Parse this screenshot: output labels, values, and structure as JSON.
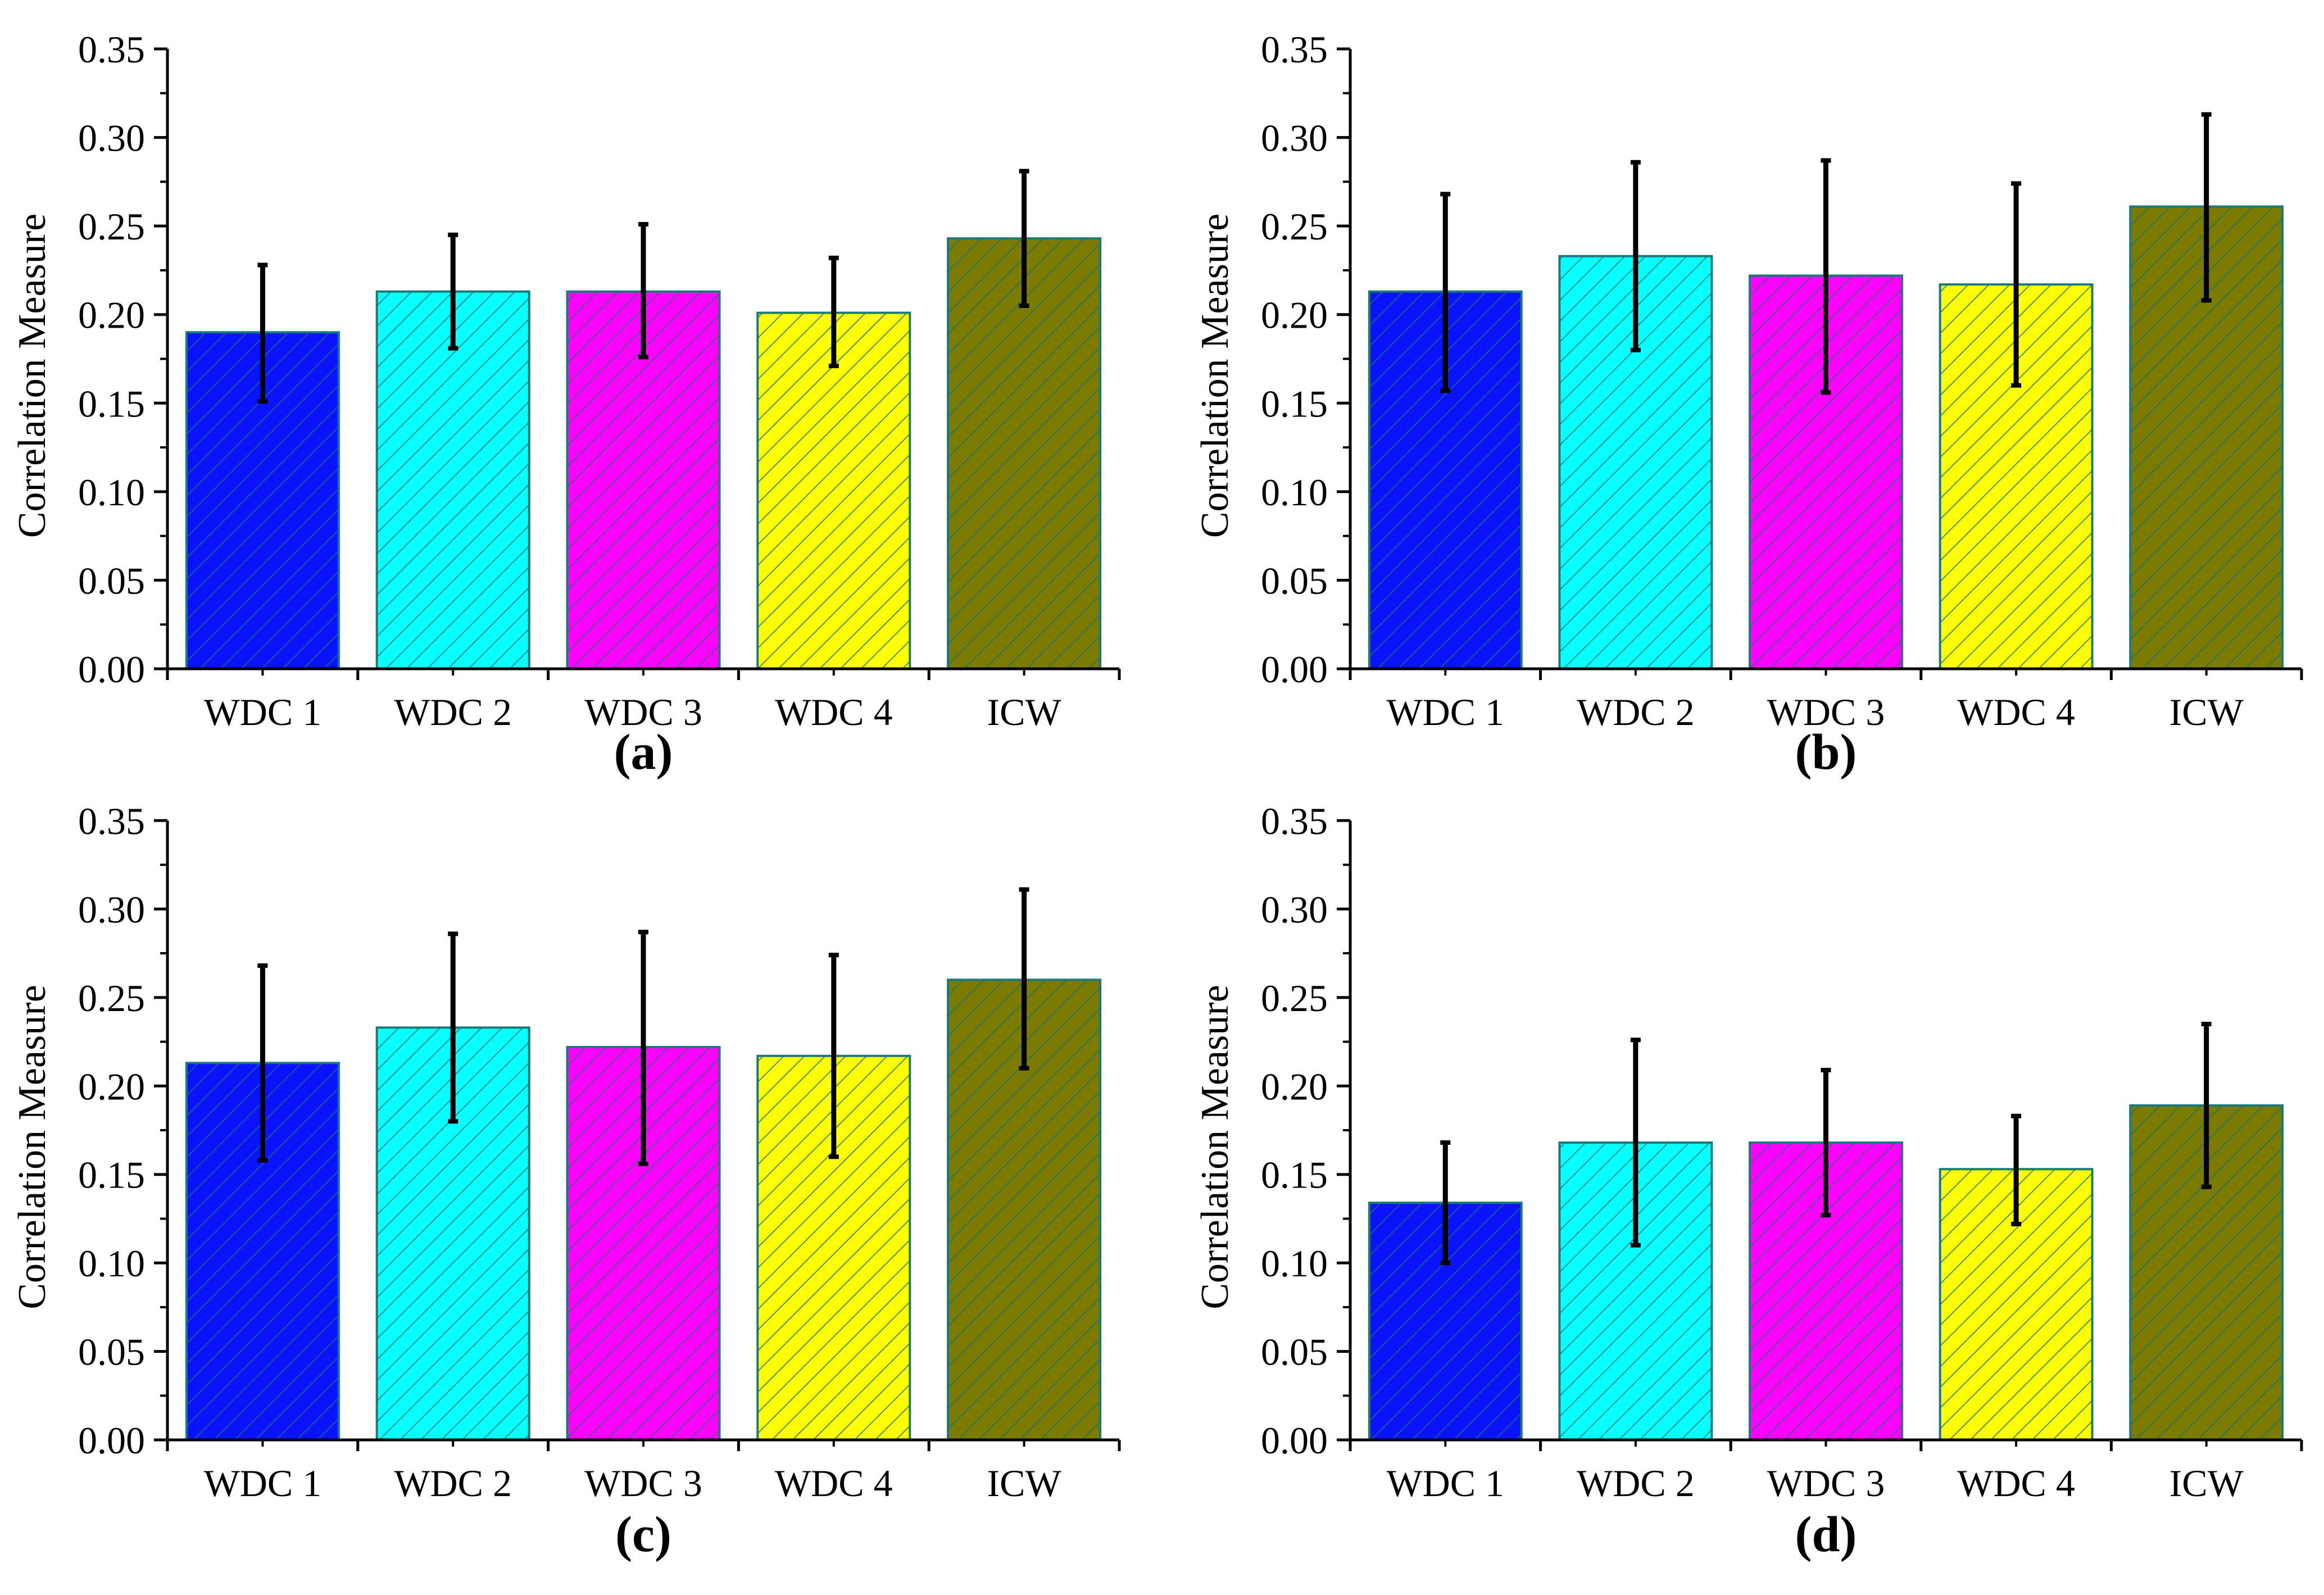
{
  "figure": {
    "colors": {
      "WDC 1": "#0a12ff",
      "WDC 2": "#08ffff",
      "WDC 3": "#ff03ff",
      "WDC 4": "#ffff06",
      "ICW": "#7b7b00",
      "bar_edge": "#1a7a7a",
      "error_bar": "#000000",
      "hatch": "#1a6f6f"
    }
  },
  "chart_data": [
    {
      "type": "bar",
      "panel_label": "(a)",
      "categories": [
        "WDC 1",
        "WDC 2",
        "WDC 3",
        "WDC 4",
        "ICW"
      ],
      "values": [
        0.19,
        0.213,
        0.213,
        0.201,
        0.243
      ],
      "error_low": [
        0.151,
        0.181,
        0.176,
        0.171,
        0.205
      ],
      "error_high": [
        0.228,
        0.245,
        0.251,
        0.232,
        0.281
      ],
      "ylabel": "Correlation Measure",
      "xlabel": "",
      "ylim": [
        0,
        0.35
      ],
      "yticks": [
        "0.00",
        "0.05",
        "0.10",
        "0.15",
        "0.20",
        "0.25",
        "0.30",
        "0.35"
      ],
      "grid": false
    },
    {
      "type": "bar",
      "panel_label": "(b)",
      "categories": [
        "WDC 1",
        "WDC 2",
        "WDC 3",
        "WDC 4",
        "ICW"
      ],
      "values": [
        0.213,
        0.233,
        0.222,
        0.217,
        0.261
      ],
      "error_low": [
        0.157,
        0.18,
        0.156,
        0.16,
        0.208
      ],
      "error_high": [
        0.268,
        0.286,
        0.287,
        0.274,
        0.313
      ],
      "ylabel": "Correlation Measure",
      "xlabel": "",
      "ylim": [
        0,
        0.35
      ],
      "yticks": [
        "0.00",
        "0.05",
        "0.10",
        "0.15",
        "0.20",
        "0.25",
        "0.30",
        "0.35"
      ],
      "grid": false
    },
    {
      "type": "bar",
      "panel_label": "(c)",
      "categories": [
        "WDC 1",
        "WDC 2",
        "WDC 3",
        "WDC 4",
        "ICW"
      ],
      "values": [
        0.213,
        0.233,
        0.222,
        0.217,
        0.26
      ],
      "error_low": [
        0.158,
        0.18,
        0.156,
        0.16,
        0.21
      ],
      "error_high": [
        0.268,
        0.286,
        0.287,
        0.274,
        0.311
      ],
      "ylabel": "Correlation Measure",
      "xlabel": "",
      "ylim": [
        0,
        0.35
      ],
      "yticks": [
        "0.00",
        "0.05",
        "0.10",
        "0.15",
        "0.20",
        "0.25",
        "0.30",
        "0.35"
      ],
      "grid": false
    },
    {
      "type": "bar",
      "panel_label": "(d)",
      "categories": [
        "WDC 1",
        "WDC 2",
        "WDC 3",
        "WDC 4",
        "ICW"
      ],
      "values": [
        0.134,
        0.168,
        0.168,
        0.153,
        0.189
      ],
      "error_low": [
        0.1,
        0.11,
        0.127,
        0.122,
        0.143
      ],
      "error_high": [
        0.168,
        0.226,
        0.209,
        0.183,
        0.235
      ],
      "ylabel": "Correlation Measure",
      "xlabel": "",
      "ylim": [
        0,
        0.35
      ],
      "yticks": [
        "0.00",
        "0.05",
        "0.10",
        "0.15",
        "0.20",
        "0.25",
        "0.30",
        "0.35"
      ],
      "grid": false
    }
  ]
}
